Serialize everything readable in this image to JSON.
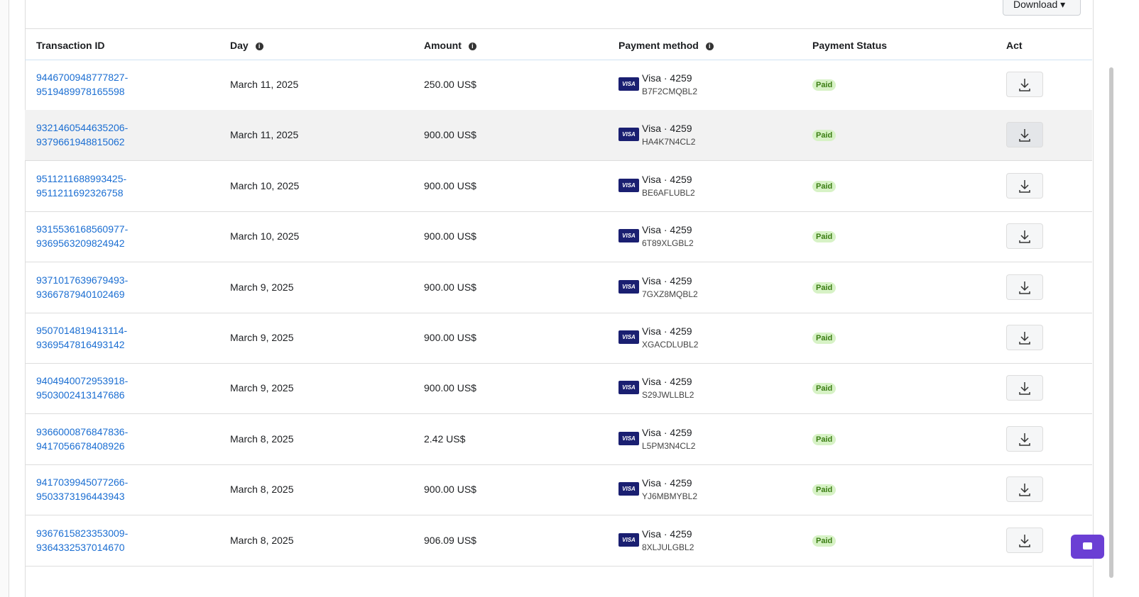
{
  "header": {
    "download": "Download"
  },
  "table": {
    "columns": [
      "Transaction ID",
      "Day",
      "Amount",
      "Payment method",
      "Payment Status",
      "Act"
    ],
    "card_logo": "VISA",
    "rows": [
      {
        "id": "9446700948777827-9519489978165598",
        "day": "March 11, 2025",
        "amount": "250.00 US$",
        "card": "Visa · 4259",
        "code": "B7F2CMQBL2",
        "status": "Paid"
      },
      {
        "id": "9321460544635206-9379661948815062",
        "day": "March 11, 2025",
        "amount": "900.00 US$",
        "card": "Visa · 4259",
        "code": "HA4K7N4CL2",
        "status": "Paid"
      },
      {
        "id": "9511211688993425-9511211692326758",
        "day": "March 10, 2025",
        "amount": "900.00 US$",
        "card": "Visa · 4259",
        "code": "BE6AFLUBL2",
        "status": "Paid"
      },
      {
        "id": "9315536168560977-9369563209824942",
        "day": "March 10, 2025",
        "amount": "900.00 US$",
        "card": "Visa · 4259",
        "code": "6T89XLGBL2",
        "status": "Paid"
      },
      {
        "id": "9371017639679493-9366787940102469",
        "day": "March 9, 2025",
        "amount": "900.00 US$",
        "card": "Visa · 4259",
        "code": "7GXZ8MQBL2",
        "status": "Paid"
      },
      {
        "id": "9507014819413114-9369547816493142",
        "day": "March 9, 2025",
        "amount": "900.00 US$",
        "card": "Visa · 4259",
        "code": "XGACDLUBL2",
        "status": "Paid"
      },
      {
        "id": "9404940072953918-9503002413147686",
        "day": "March 9, 2025",
        "amount": "900.00 US$",
        "card": "Visa · 4259",
        "code": "S29JWLLBL2",
        "status": "Paid"
      },
      {
        "id": "9366000876847836-9417056678408926",
        "day": "March 8, 2025",
        "amount": "2.42 US$",
        "card": "Visa · 4259",
        "code": "L5PM3N4CL2",
        "status": "Paid"
      },
      {
        "id": "9417039945077266-9503373196443943",
        "day": "March 8, 2025",
        "amount": "900.00 US$",
        "card": "Visa · 4259",
        "code": "YJ6MBMYBL2",
        "status": "Paid"
      },
      {
        "id": "9367615823353009-9364332537014670",
        "day": "March 8, 2025",
        "amount": "906.09 US$",
        "card": "Visa · 4259",
        "code": "8XLJULGBL2",
        "status": "Paid"
      }
    ]
  }
}
